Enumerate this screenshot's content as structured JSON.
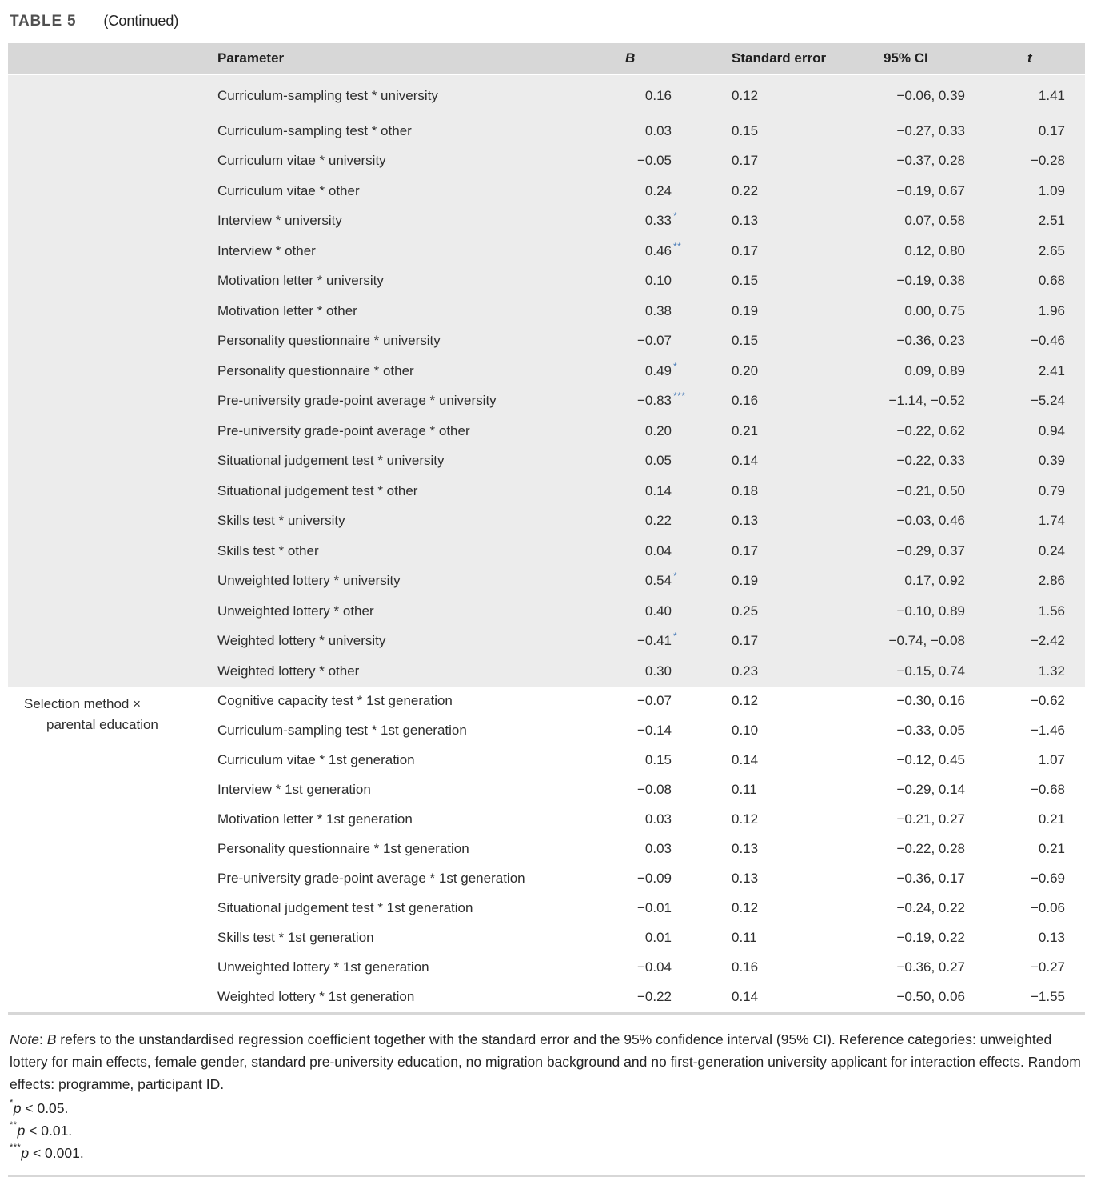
{
  "title": {
    "label": "TABLE 5",
    "continued": "(Continued)"
  },
  "colors": {
    "header_bg": "#d7d7d7",
    "section1_bg": "#ececec",
    "section2_bg": "#ffffff",
    "star_blue": "#4a7cb8",
    "text": "#2e2e2e"
  },
  "table": {
    "headers": {
      "parameter": "Parameter",
      "b": "B",
      "se": "Standard error",
      "ci": "95% CI",
      "t": "t"
    },
    "sections": [
      {
        "group_label_lines": [],
        "rows": [
          {
            "param": "Curriculum-sampling test * university",
            "b": "0.16",
            "stars": "",
            "se": "0.12",
            "ci": "−0.06, 0.39",
            "t": "1.41"
          },
          {
            "param": "Curriculum-sampling test * other",
            "b": "0.03",
            "stars": "",
            "se": "0.15",
            "ci": "−0.27, 0.33",
            "t": "0.17"
          },
          {
            "param": "Curriculum vitae * university",
            "b": "−0.05",
            "stars": "",
            "se": "0.17",
            "ci": "−0.37, 0.28",
            "t": "−0.28"
          },
          {
            "param": "Curriculum vitae * other",
            "b": "0.24",
            "stars": "",
            "se": "0.22",
            "ci": "−0.19, 0.67",
            "t": "1.09"
          },
          {
            "param": "Interview * university",
            "b": "0.33",
            "stars": "*",
            "se": "0.13",
            "ci": "0.07, 0.58",
            "t": "2.51"
          },
          {
            "param": "Interview * other",
            "b": "0.46",
            "stars": "**",
            "se": "0.17",
            "ci": "0.12, 0.80",
            "t": "2.65"
          },
          {
            "param": "Motivation letter * university",
            "b": "0.10",
            "stars": "",
            "se": "0.15",
            "ci": "−0.19, 0.38",
            "t": "0.68"
          },
          {
            "param": "Motivation letter * other",
            "b": "0.38",
            "stars": "",
            "se": "0.19",
            "ci": "0.00, 0.75",
            "t": "1.96"
          },
          {
            "param": "Personality questionnaire * university",
            "b": "−0.07",
            "stars": "",
            "se": "0.15",
            "ci": "−0.36, 0.23",
            "t": "−0.46"
          },
          {
            "param": "Personality questionnaire * other",
            "b": "0.49",
            "stars": "*",
            "se": "0.20",
            "ci": "0.09, 0.89",
            "t": "2.41"
          },
          {
            "param": "Pre-university grade-point average * university",
            "b": "−0.83",
            "stars": "***",
            "se": "0.16",
            "ci": "−1.14, −0.52",
            "t": "−5.24"
          },
          {
            "param": "Pre-university grade-point average * other",
            "b": "0.20",
            "stars": "",
            "se": "0.21",
            "ci": "−0.22, 0.62",
            "t": "0.94"
          },
          {
            "param": "Situational judgement test * university",
            "b": "0.05",
            "stars": "",
            "se": "0.14",
            "ci": "−0.22, 0.33",
            "t": "0.39"
          },
          {
            "param": "Situational judgement test * other",
            "b": "0.14",
            "stars": "",
            "se": "0.18",
            "ci": "−0.21, 0.50",
            "t": "0.79"
          },
          {
            "param": "Skills test * university",
            "b": "0.22",
            "stars": "",
            "se": "0.13",
            "ci": "−0.03, 0.46",
            "t": "1.74"
          },
          {
            "param": "Skills test * other",
            "b": "0.04",
            "stars": "",
            "se": "0.17",
            "ci": "−0.29, 0.37",
            "t": "0.24"
          },
          {
            "param": "Unweighted lottery * university",
            "b": "0.54",
            "stars": "*",
            "se": "0.19",
            "ci": "0.17, 0.92",
            "t": "2.86"
          },
          {
            "param": "Unweighted lottery * other",
            "b": "0.40",
            "stars": "",
            "se": "0.25",
            "ci": "−0.10, 0.89",
            "t": "1.56"
          },
          {
            "param": "Weighted lottery * university",
            "b": "−0.41",
            "stars": "*",
            "se": "0.17",
            "ci": "−0.74, −0.08",
            "t": "−2.42"
          },
          {
            "param": "Weighted lottery * other",
            "b": "0.30",
            "stars": "",
            "se": "0.23",
            "ci": "−0.15, 0.74",
            "t": "1.32"
          }
        ]
      },
      {
        "group_label_lines": [
          "Selection method ×",
          "parental education"
        ],
        "rows": [
          {
            "param": "Cognitive capacity test * 1st generation",
            "b": "−0.07",
            "stars": "",
            "se": "0.12",
            "ci": "−0.30, 0.16",
            "t": "−0.62"
          },
          {
            "param": "Curriculum-sampling test * 1st generation",
            "b": "−0.14",
            "stars": "",
            "se": "0.10",
            "ci": "−0.33, 0.05",
            "t": "−1.46"
          },
          {
            "param": "Curriculum vitae * 1st generation",
            "b": "0.15",
            "stars": "",
            "se": "0.14",
            "ci": "−0.12, 0.45",
            "t": "1.07"
          },
          {
            "param": "Interview * 1st generation",
            "b": "−0.08",
            "stars": "",
            "se": "0.11",
            "ci": "−0.29, 0.14",
            "t": "−0.68"
          },
          {
            "param": "Motivation letter * 1st generation",
            "b": "0.03",
            "stars": "",
            "se": "0.12",
            "ci": "−0.21, 0.27",
            "t": "0.21"
          },
          {
            "param": "Personality questionnaire * 1st generation",
            "b": "0.03",
            "stars": "",
            "se": "0.13",
            "ci": "−0.22, 0.28",
            "t": "0.21"
          },
          {
            "param": "Pre-university grade-point average * 1st generation",
            "b": "−0.09",
            "stars": "",
            "se": "0.13",
            "ci": "−0.36, 0.17",
            "t": "−0.69"
          },
          {
            "param": "Situational judgement test * 1st generation",
            "b": "−0.01",
            "stars": "",
            "se": "0.12",
            "ci": "−0.24, 0.22",
            "t": "−0.06"
          },
          {
            "param": "Skills test * 1st generation",
            "b": "0.01",
            "stars": "",
            "se": "0.11",
            "ci": "−0.19, 0.22",
            "t": "0.13"
          },
          {
            "param": "Unweighted lottery * 1st generation",
            "b": "−0.04",
            "stars": "",
            "se": "0.16",
            "ci": "−0.36, 0.27",
            "t": "−0.27"
          },
          {
            "param": "Weighted lottery * 1st generation",
            "b": "−0.22",
            "stars": "",
            "se": "0.14",
            "ci": "−0.50, 0.06",
            "t": "−1.55"
          }
        ]
      }
    ]
  },
  "note": {
    "label": "Note",
    "sep": ": ",
    "b": "B",
    "text": " refers to the unstandardised regression coefficient together with the standard error and the 95% confidence interval (95% CI). Reference categories: unweighted lottery for main effects, female gender, standard pre-university education, no migration background and no first-generation university applicant for interaction effects. Random effects: programme, participant ID."
  },
  "footnotes": [
    {
      "marker": "*",
      "var": "p",
      "text": " < 0.05."
    },
    {
      "marker": "**",
      "var": "p",
      "text": " < 0.01."
    },
    {
      "marker": "***",
      "var": "p",
      "text": " < 0.001."
    }
  ]
}
